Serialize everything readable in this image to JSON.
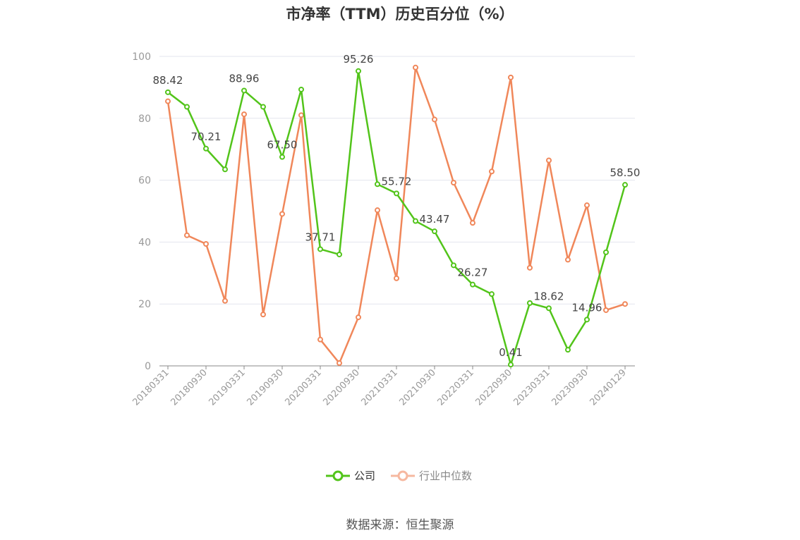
{
  "title": "市净率（TTM）历史百分位（%）",
  "source": "数据来源：恒生聚源",
  "legend": {
    "company": "公司",
    "industry": "行业中位数"
  },
  "colors": {
    "company": "#52c41a",
    "industry": "#f0875a",
    "industry_legend": "#f6b8a0",
    "grid": "#e3e6ee",
    "axis": "#888888",
    "tick_text": "#999999"
  },
  "chart_data": {
    "type": "line",
    "title": "市净率（TTM）历史百分位（%）",
    "ylim": [
      0,
      100
    ],
    "yticks": [
      "0",
      "20",
      "40",
      "60",
      "80",
      "100"
    ],
    "x_tick_labels": [
      "20180331",
      "20180930",
      "20190331",
      "20190930",
      "20200331",
      "20200930",
      "20210331",
      "20210930",
      "20220331",
      "20220930",
      "20230331",
      "20230930",
      "20240129"
    ],
    "x_tick_indices": [
      0,
      2,
      4,
      6,
      8,
      10,
      12,
      14,
      16,
      18,
      20,
      22,
      24
    ],
    "grid": true,
    "legend_position": "bottom",
    "series": [
      {
        "name": "公司",
        "values": [
          88.42,
          83.7,
          70.21,
          63.5,
          88.96,
          83.7,
          67.5,
          89.3,
          37.71,
          36.0,
          95.26,
          58.7,
          55.72,
          46.8,
          43.47,
          32.5,
          26.27,
          23.2,
          0.41,
          20.3,
          18.62,
          5.2,
          14.96,
          36.7,
          58.5
        ],
        "labels": {
          "0": "88.42",
          "2": "70.21",
          "4": "88.96",
          "6": "67.50",
          "8": "37.71",
          "10": "95.26",
          "12": "55.72",
          "14": "43.47",
          "16": "26.27",
          "18": "0.41",
          "20": "18.62",
          "22": "14.96",
          "24": "58.50"
        }
      },
      {
        "name": "行业中位数",
        "values": [
          85.5,
          42.2,
          39.4,
          21.0,
          81.3,
          16.6,
          49.1,
          81.0,
          8.5,
          0.9,
          15.7,
          50.3,
          28.3,
          96.4,
          79.6,
          59.2,
          46.2,
          62.8,
          93.2,
          31.7,
          66.4,
          34.3,
          51.9,
          18.0,
          20.0
        ]
      }
    ]
  }
}
